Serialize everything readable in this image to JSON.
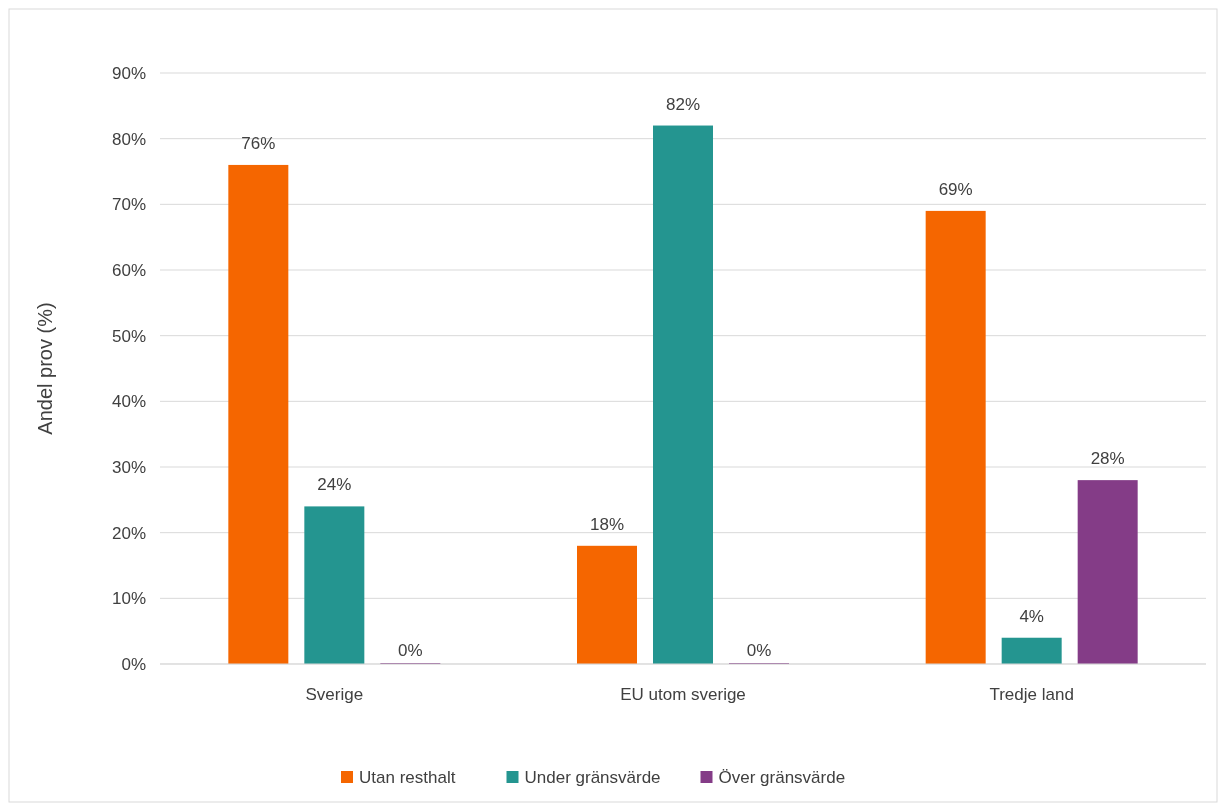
{
  "chart_data": {
    "type": "bar",
    "ylabel": "Andel prov (%)",
    "categories": [
      "Sverige",
      "EU utom sverige",
      "Tredje land"
    ],
    "series": [
      {
        "name": "Utan resthalt",
        "color": "#f56600",
        "values": [
          76,
          18,
          69
        ],
        "value_labels": [
          "76%",
          "18%",
          "69%"
        ]
      },
      {
        "name": "Under gränsvärde",
        "color": "#249590",
        "values": [
          24,
          82,
          4
        ],
        "value_labels": [
          "24%",
          "82%",
          "4%"
        ]
      },
      {
        "name": "Över gränsvärde",
        "color": "#843c87",
        "values": [
          0,
          0,
          28
        ],
        "value_labels": [
          "0%",
          "0%",
          "28%"
        ]
      }
    ],
    "ylim": [
      0,
      90
    ],
    "yticks": [
      {
        "value": 0,
        "label": "0%"
      },
      {
        "value": 10,
        "label": "10%"
      },
      {
        "value": 20,
        "label": "20%"
      },
      {
        "value": 30,
        "label": "30%"
      },
      {
        "value": 40,
        "label": "40%"
      },
      {
        "value": 50,
        "label": "50%"
      },
      {
        "value": 60,
        "label": "60%"
      },
      {
        "value": 70,
        "label": "70%"
      },
      {
        "value": 80,
        "label": "80%"
      },
      {
        "value": 90,
        "label": "90%"
      }
    ],
    "grid": "y",
    "legend": "bottom"
  }
}
